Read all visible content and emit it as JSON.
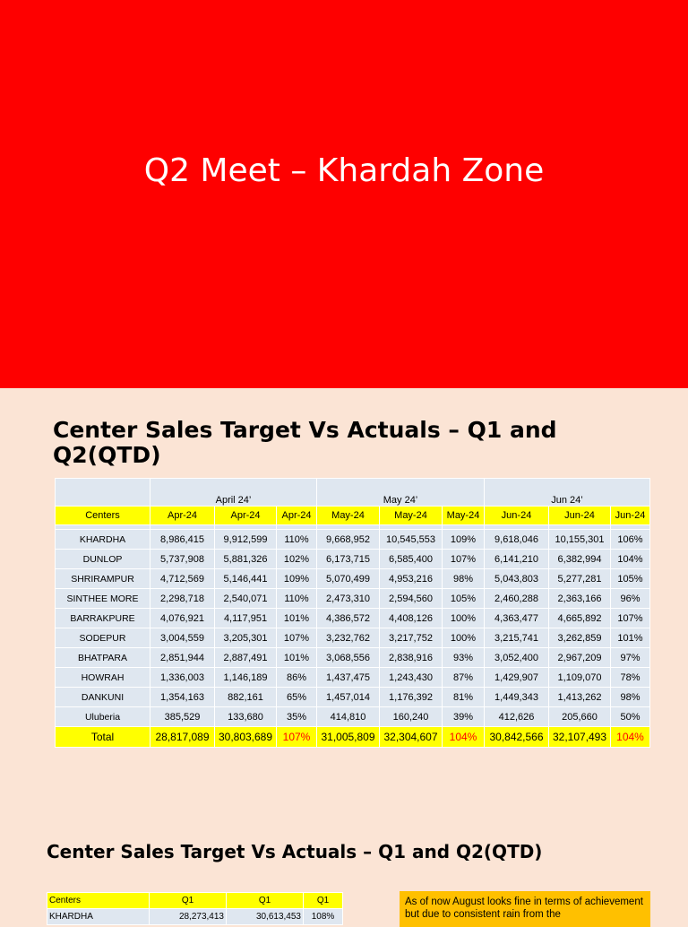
{
  "slide1": {
    "title": "Q2 Meet – Khardah Zone"
  },
  "slide2": {
    "heading_line1": "Center Sales Target Vs Actuals – Q1 and",
    "heading_line2": "Q2(QTD)",
    "groups": [
      "April 24’",
      "May 24’",
      "Jun 24’"
    ],
    "headers": [
      "Centers",
      "Apr-24",
      "Apr-24",
      "Apr-24",
      "May-24",
      "May-24",
      "May-24",
      "Jun-24",
      "Jun-24",
      "Jun-24"
    ],
    "rows": [
      [
        "KHARDHA",
        "8,986,415",
        "9,912,599",
        "110%",
        "9,668,952",
        "10,545,553",
        "109%",
        "9,618,046",
        "10,155,301",
        "106%"
      ],
      [
        "DUNLOP",
        "5,737,908",
        "5,881,326",
        "102%",
        "6,173,715",
        "6,585,400",
        "107%",
        "6,141,210",
        "6,382,994",
        "104%"
      ],
      [
        "SHRIRAMPUR",
        "4,712,569",
        "5,146,441",
        "109%",
        "5,070,499",
        "4,953,216",
        "98%",
        "5,043,803",
        "5,277,281",
        "105%"
      ],
      [
        "SINTHEE MORE",
        "2,298,718",
        "2,540,071",
        "110%",
        "2,473,310",
        "2,594,560",
        "105%",
        "2,460,288",
        "2,363,166",
        "96%"
      ],
      [
        "BARRAKPURE",
        "4,076,921",
        "4,117,951",
        "101%",
        "4,386,572",
        "4,408,126",
        "100%",
        "4,363,477",
        "4,665,892",
        "107%"
      ],
      [
        "SODEPUR",
        "3,004,559",
        "3,205,301",
        "107%",
        "3,232,762",
        "3,217,752",
        "100%",
        "3,215,741",
        "3,262,859",
        "101%"
      ],
      [
        "BHATPARA",
        "2,851,944",
        "2,887,491",
        "101%",
        "3,068,556",
        "2,838,916",
        "93%",
        "3,052,400",
        "2,967,209",
        "97%"
      ],
      [
        "HOWRAH",
        "1,336,003",
        "1,146,189",
        "86%",
        "1,437,475",
        "1,243,430",
        "87%",
        "1,429,907",
        "1,109,070",
        "78%"
      ],
      [
        "DANKUNI",
        "1,354,163",
        "882,161",
        "65%",
        "1,457,014",
        "1,176,392",
        "81%",
        "1,449,343",
        "1,413,262",
        "98%"
      ],
      [
        "Uluberia",
        "385,529",
        "133,680",
        "35%",
        "414,810",
        "160,240",
        "39%",
        "412,626",
        "205,660",
        "50%"
      ]
    ],
    "total": [
      "Total",
      "28,817,089",
      "30,803,689",
      "107%",
      "31,005,809",
      "32,304,607",
      "104%",
      "30,842,566",
      "32,107,493",
      "104%"
    ]
  },
  "slide3": {
    "heading": "Center Sales Target Vs Actuals – Q1 and Q2(QTD)",
    "headers": [
      "Centers",
      "Q1",
      "Q1",
      "Q1"
    ],
    "rows": [
      [
        "KHARDHA",
        "28,273,413",
        "30,613,453",
        "108%"
      ]
    ],
    "note": "As of now August looks fine in terms of achievement but due to consistent rain from the"
  },
  "colors": {
    "title_bg": "#fe0000",
    "slide_bg": "#fbe4d5",
    "header_yellow": "#ffff00",
    "cell_blue": "#dfe7f0",
    "note_orange": "#ffc000",
    "total_pct_red": "#ff0000"
  }
}
